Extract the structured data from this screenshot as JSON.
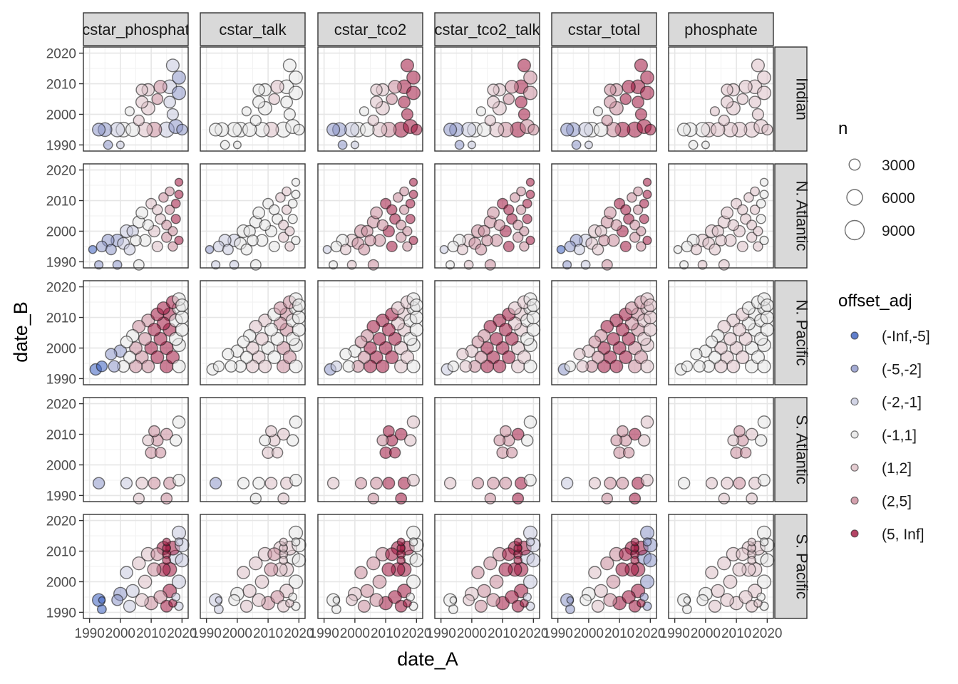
{
  "chart_data": {
    "type": "scatter",
    "subtype": "faceted-bubble",
    "xlabel": "date_A",
    "ylabel": "date_B",
    "xlim": [
      1988,
      2022
    ],
    "ylim": [
      1988,
      2022
    ],
    "x_ticks": [
      1990,
      2000,
      2010,
      2020
    ],
    "x_tick_labels": [
      "1990",
      "2000",
      "2010",
      "2020"
    ],
    "y_ticks": [
      1990,
      2000,
      2010,
      2020
    ],
    "y_tick_labels": [
      "1990",
      "2000",
      "2010",
      "2020"
    ],
    "grid": true,
    "columns": [
      "cstar_phosphate",
      "cstar_talk",
      "cstar_tco2",
      "cstar_tco2_talk",
      "cstar_total",
      "phosphate"
    ],
    "column_labels": [
      "cstar_phosphat",
      "cstar_talk",
      "cstar_tco2",
      "cstar_tco2_talk",
      "cstar_total",
      "phosphate"
    ],
    "rows": [
      "Indian",
      "N. Atlantic",
      "N. Pacific",
      "S. Atlantic",
      "S. Pacific"
    ],
    "size_legend": {
      "title": "n",
      "breaks": [
        3000,
        6000,
        9000
      ],
      "labels": [
        "3000",
        "6000",
        "9000"
      ]
    },
    "color_legend": {
      "title": "offset_adj",
      "categories": [
        "(-Inf,-5]",
        "(-5,-2]",
        "(-2,-1]",
        "(-1,1]",
        "(1,2]",
        "(2,5]",
        "(5, Inf]"
      ],
      "colors": [
        "#3a5fbf",
        "#8d96c9",
        "#c7c9df",
        "#e6e6e6",
        "#ddbfc6",
        "#c98a9a",
        "#a1153f"
      ]
    },
    "scheme": {
      "Indian": {
        "cstar_phosphate": [
          1,
          1,
          2,
          3,
          4,
          5,
          2,
          1
        ],
        "cstar_talk": [
          3,
          3,
          3,
          3,
          3,
          4,
          3,
          3
        ],
        "cstar_tco2": [
          1,
          1,
          2,
          3,
          4,
          5,
          6,
          6
        ],
        "cstar_tco2_talk": [
          1,
          1,
          2,
          3,
          4,
          5,
          6,
          5
        ],
        "cstar_total": [
          0,
          1,
          2,
          3,
          5,
          6,
          6,
          6
        ],
        "phosphate": [
          3,
          3,
          3,
          4,
          4,
          4,
          4,
          4
        ]
      },
      "N. Atlantic": {
        "cstar_phosphate": [
          0,
          1,
          1,
          2,
          3,
          4,
          5,
          6
        ],
        "cstar_talk": [
          1,
          2,
          2,
          3,
          3,
          3,
          4,
          3
        ],
        "cstar_tco2": [
          2,
          3,
          4,
          5,
          5,
          6,
          5,
          6
        ],
        "cstar_tco2_talk": [
          2,
          3,
          4,
          5,
          5,
          6,
          5,
          6
        ],
        "cstar_total": [
          0,
          1,
          2,
          4,
          5,
          6,
          5,
          6
        ],
        "phosphate": [
          3,
          3,
          4,
          4,
          4,
          4,
          4,
          3
        ]
      },
      "N. Pacific": {
        "cstar_phosphate": [
          0,
          0,
          1,
          3,
          5,
          6,
          6,
          3
        ],
        "cstar_talk": [
          3,
          3,
          3,
          3,
          4,
          3,
          5,
          3
        ],
        "cstar_tco2": [
          1,
          2,
          3,
          5,
          6,
          6,
          4,
          3
        ],
        "cstar_tco2_talk": [
          2,
          3,
          4,
          5,
          6,
          6,
          4,
          3
        ],
        "cstar_total": [
          1,
          3,
          4,
          5,
          6,
          6,
          5,
          4
        ],
        "phosphate": [
          3,
          3,
          3,
          3,
          4,
          4,
          3,
          3
        ]
      },
      "S. Atlantic": {
        "cstar_phosphate": [
          0,
          1,
          1,
          2,
          4,
          5,
          5,
          3
        ],
        "cstar_talk": [
          1,
          1,
          2,
          3,
          3,
          4,
          4,
          3
        ],
        "cstar_tco2": [
          3,
          4,
          4,
          5,
          5,
          6,
          6,
          4
        ],
        "cstar_tco2_talk": [
          3,
          4,
          4,
          5,
          5,
          5,
          6,
          3
        ],
        "cstar_total": [
          1,
          2,
          3,
          4,
          5,
          5,
          6,
          4
        ],
        "phosphate": [
          3,
          3,
          4,
          4,
          4,
          5,
          4,
          3
        ]
      },
      "S. Pacific": {
        "cstar_phosphate": [
          0,
          0,
          1,
          2,
          4,
          5,
          6,
          2
        ],
        "cstar_talk": [
          1,
          2,
          3,
          4,
          4,
          5,
          4,
          3
        ],
        "cstar_tco2": [
          1,
          3,
          4,
          5,
          5,
          6,
          6,
          3
        ],
        "cstar_tco2_talk": [
          1,
          3,
          4,
          5,
          5,
          6,
          6,
          2
        ],
        "cstar_total": [
          0,
          1,
          3,
          4,
          5,
          6,
          6,
          1
        ],
        "phosphate": [
          3,
          3,
          3,
          4,
          4,
          4,
          4,
          3
        ]
      }
    },
    "points": {
      "Indian": [
        [
          1993,
          1995,
          4500
        ],
        [
          1995,
          1995,
          5200
        ],
        [
          1996,
          1990,
          2200
        ],
        [
          1999,
          1995,
          5800
        ],
        [
          2000,
          1990,
          1600
        ],
        [
          2001,
          1995,
          6000
        ],
        [
          2003,
          2001,
          2300
        ],
        [
          2004,
          1995,
          5200
        ],
        [
          2006,
          1998,
          3200
        ],
        [
          2007,
          2004,
          4000
        ],
        [
          2007,
          2008,
          3600
        ],
        [
          2008,
          1995,
          5800
        ],
        [
          2009,
          2002,
          5000
        ],
        [
          2009,
          2008,
          4200
        ],
        [
          2011,
          1995,
          6000
        ],
        [
          2012,
          2005,
          3300
        ],
        [
          2013,
          2009,
          4600
        ],
        [
          2015,
          1995,
          6400
        ],
        [
          2016,
          2004,
          3800
        ],
        [
          2016,
          2009,
          5200
        ],
        [
          2017,
          2000,
          3500
        ],
        [
          2017,
          2016,
          4500
        ],
        [
          2018,
          1996,
          5500
        ],
        [
          2019,
          2007,
          5000
        ],
        [
          2019,
          2012,
          4800
        ],
        [
          2020,
          1995,
          3200
        ]
      ],
      "N. Atlantic": [
        [
          1991,
          1994,
          1800
        ],
        [
          1993,
          1989,
          2000
        ],
        [
          1994,
          1995,
          3200
        ],
        [
          1996,
          1997,
          4000
        ],
        [
          1997,
          1994,
          3000
        ],
        [
          1999,
          1989,
          2200
        ],
        [
          1999,
          1997,
          4300
        ],
        [
          2001,
          1996,
          3800
        ],
        [
          2002,
          2000,
          4500
        ],
        [
          2003,
          1994,
          3400
        ],
        [
          2004,
          2000,
          3600
        ],
        [
          2005,
          1997,
          3300
        ],
        [
          2006,
          2003,
          4000
        ],
        [
          2006,
          1989,
          3000
        ],
        [
          2007,
          2006,
          3800
        ],
        [
          2008,
          1997,
          3800
        ],
        [
          2009,
          2002,
          3200
        ],
        [
          2010,
          2009,
          3000
        ],
        [
          2011,
          2000,
          3500
        ],
        [
          2012,
          2007,
          2800
        ],
        [
          2012,
          1995,
          3000
        ],
        [
          2013,
          2004,
          3000
        ],
        [
          2014,
          2011,
          2500
        ],
        [
          2015,
          1998,
          2800
        ],
        [
          2015,
          2002,
          2600
        ],
        [
          2016,
          2007,
          2400
        ],
        [
          2016,
          2013,
          2200
        ],
        [
          2017,
          1995,
          2400
        ],
        [
          2017,
          2000,
          2300
        ],
        [
          2018,
          2004,
          2300
        ],
        [
          2018,
          2009,
          2200
        ],
        [
          2019,
          2016,
          1700
        ],
        [
          2019,
          2012,
          1900
        ],
        [
          2019,
          1997,
          2000
        ]
      ],
      "N. Pacific": [
        [
          1992,
          1993,
          3600
        ],
        [
          1994,
          1994,
          3200
        ],
        [
          1997,
          1998,
          3500
        ],
        [
          1998,
          1994,
          3600
        ],
        [
          2000,
          1999,
          4200
        ],
        [
          2001,
          1994,
          3800
        ],
        [
          2002,
          2002,
          3800
        ],
        [
          2003,
          1997,
          4000
        ],
        [
          2004,
          2004,
          4200
        ],
        [
          2005,
          1994,
          4300
        ],
        [
          2005,
          2000,
          4300
        ],
        [
          2006,
          2007,
          4300
        ],
        [
          2007,
          1997,
          4400
        ],
        [
          2008,
          2003,
          4400
        ],
        [
          2009,
          2009,
          4500
        ],
        [
          2009,
          1994,
          4400
        ],
        [
          2010,
          2000,
          4500
        ],
        [
          2011,
          2006,
          4500
        ],
        [
          2012,
          2011,
          4500
        ],
        [
          2012,
          1997,
          4500
        ],
        [
          2013,
          2003,
          4600
        ],
        [
          2014,
          2008,
          4600
        ],
        [
          2014,
          2013,
          4500
        ],
        [
          2015,
          1994,
          4600
        ],
        [
          2015,
          2000,
          4700
        ],
        [
          2016,
          2006,
          4700
        ],
        [
          2016,
          2011,
          4700
        ],
        [
          2017,
          2015,
          4500
        ],
        [
          2017,
          1997,
          4600
        ],
        [
          2018,
          2003,
          4700
        ],
        [
          2018,
          2009,
          4700
        ],
        [
          2019,
          2013,
          4600
        ],
        [
          2019,
          2016,
          4500
        ],
        [
          2019,
          1994,
          4500
        ],
        [
          2019,
          2001,
          4800
        ],
        [
          2020,
          2006,
          4700
        ],
        [
          2020,
          2010,
          4600
        ],
        [
          2020,
          2014,
          4400
        ]
      ],
      "S. Atlantic": [
        [
          1993,
          1994,
          3600
        ],
        [
          2002,
          1994,
          3500
        ],
        [
          2006,
          1989,
          3200
        ],
        [
          2007,
          1994,
          3800
        ],
        [
          2009,
          2008,
          3400
        ],
        [
          2010,
          2004,
          3600
        ],
        [
          2011,
          1994,
          3800
        ],
        [
          2011,
          2011,
          3400
        ],
        [
          2012,
          2008,
          3600
        ],
        [
          2013,
          2004,
          3200
        ],
        [
          2015,
          1989,
          3400
        ],
        [
          2015,
          2010,
          3800
        ],
        [
          2016,
          1994,
          4000
        ],
        [
          2018,
          2008,
          3600
        ],
        [
          2019,
          1995,
          3800
        ],
        [
          2019,
          2014,
          4200
        ]
      ],
      "S. Pacific": [
        [
          1993,
          1994,
          4500
        ],
        [
          1994,
          1991,
          2200
        ],
        [
          1994,
          1994,
          1200
        ],
        [
          1999,
          1994,
          3400
        ],
        [
          2000,
          1996,
          4800
        ],
        [
          2002,
          2003,
          4200
        ],
        [
          2003,
          1992,
          4000
        ],
        [
          2004,
          1997,
          4600
        ],
        [
          2006,
          2006,
          4600
        ],
        [
          2007,
          1994,
          4600
        ],
        [
          2008,
          2000,
          4800
        ],
        [
          2009,
          2009,
          5000
        ],
        [
          2010,
          1993,
          4800
        ],
        [
          2011,
          2004,
          4900
        ],
        [
          2012,
          2009,
          4500
        ],
        [
          2013,
          1995,
          4600
        ],
        [
          2014,
          2004,
          5000
        ],
        [
          2014,
          2011,
          4800
        ],
        [
          2015,
          1992,
          3800
        ],
        [
          2015,
          2007,
          1800
        ],
        [
          2015,
          2009,
          2000
        ],
        [
          2015,
          2011,
          1800
        ],
        [
          2015,
          2013,
          1600
        ],
        [
          2016,
          1997,
          5000
        ],
        [
          2016,
          2004,
          5200
        ],
        [
          2017,
          2011,
          5400
        ],
        [
          2017,
          1993,
          1800
        ],
        [
          2018,
          1995,
          1800
        ],
        [
          2018,
          2008,
          5500
        ],
        [
          2019,
          2016,
          5000
        ],
        [
          2019,
          2013,
          1800
        ],
        [
          2019,
          2000,
          5000
        ],
        [
          2019,
          1992,
          2000
        ],
        [
          2020,
          2007,
          4800
        ],
        [
          2020,
          2012,
          5200
        ]
      ]
    }
  }
}
